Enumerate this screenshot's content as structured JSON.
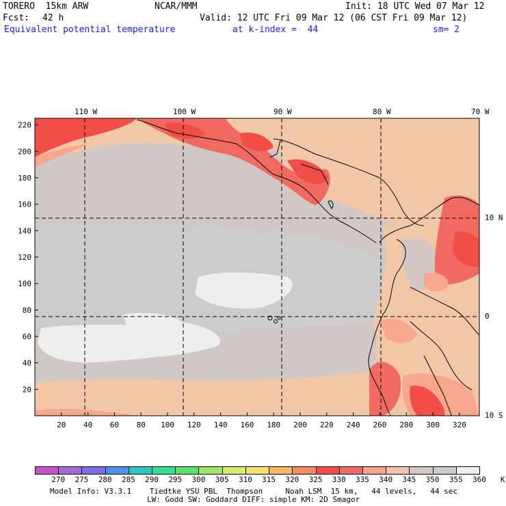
{
  "header": {
    "model": "TORERO  15km ARW",
    "org": "NCAR/MMM",
    "init": "Init: 18 UTC Wed 07 Mar 12",
    "fcst_label": "Fcst:",
    "fcst_value": "42 h",
    "valid": "Valid: 12 UTC Fri 09 Mar 12 (06 CST Fri 09 Mar 12)",
    "field": "Equivalent potential temperature",
    "level": "at k-index =  44",
    "smooth": "sm= 2"
  },
  "map": {
    "top_lon_labels": [
      "110 W",
      "100 W",
      "90 W",
      "80 W",
      "70 W"
    ],
    "right_lat_labels": [
      "10 N",
      "0",
      "10 S"
    ],
    "left_y_ticks": [
      "220",
      "200",
      "180",
      "160",
      "140",
      "120",
      "100",
      "80",
      "60",
      "40",
      "20"
    ],
    "bottom_x_ticks": [
      "20",
      "40",
      "60",
      "80",
      "100",
      "120",
      "140",
      "160",
      "180",
      "200",
      "220",
      "240",
      "260",
      "280",
      "300",
      "320"
    ],
    "y_max": 225,
    "x_max": 335
  },
  "colorbar": {
    "labels": [
      "270",
      "275",
      "280",
      "285",
      "290",
      "295",
      "300",
      "305",
      "310",
      "315",
      "320",
      "325",
      "330",
      "335",
      "340",
      "345",
      "350",
      "355",
      "360",
      "K"
    ],
    "colors": [
      "#c94fcc",
      "#a368d9",
      "#7a6fe6",
      "#4f8fe8",
      "#26c7c2",
      "#2ee09a",
      "#5ce070",
      "#a0e860",
      "#d6f06a",
      "#f5e36a",
      "#f5b85e",
      "#f58a5e",
      "#f04e46",
      "#f06a62",
      "#f7a88c",
      "#f2c7a8",
      "#d4c8c4",
      "#cccccc",
      "#eeeeee"
    ]
  },
  "footer": {
    "line1": "Model Info: V3.3.1    Tiedtke YSU PBL  Thompson     Noah LSM  15 km,   44 levels,   44 sec",
    "line2": "LW: Godd SW: Goddard DIFF: simple KM: 2D Smagor"
  }
}
